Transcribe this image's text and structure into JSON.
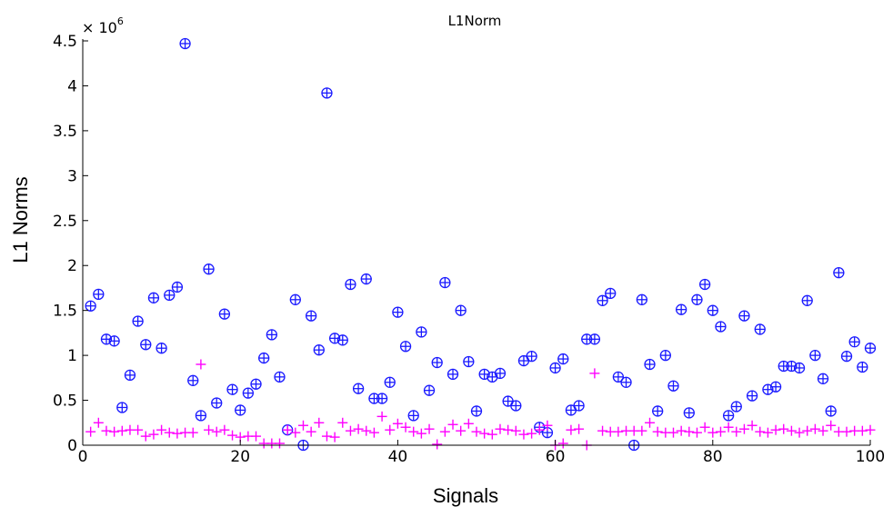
{
  "chart_data": {
    "type": "scatter",
    "title": "L1Norm",
    "xlabel": "Signals",
    "ylabel": "L1 Norms",
    "y_multiplier_label": "× 10",
    "y_multiplier_exponent": "6",
    "xlim": [
      0,
      100
    ],
    "ylim": [
      0,
      4.5
    ],
    "x_ticks": [
      0,
      20,
      40,
      60,
      80,
      100
    ],
    "x_tick_labels": [
      "0",
      "20",
      "40",
      "60",
      "80",
      "100"
    ],
    "y_ticks": [
      0,
      0.5,
      1,
      1.5,
      2,
      2.5,
      3,
      3.5,
      4,
      4.5
    ],
    "y_tick_labels": [
      "0",
      "0.5",
      "1",
      "1.5",
      "2",
      "2.5",
      "3",
      "3.5",
      "4",
      "4.5"
    ],
    "grid": false,
    "series": [
      {
        "marker": "circle-plus",
        "color": "#1a1aff",
        "x": [
          1,
          2,
          3,
          4,
          5,
          6,
          7,
          8,
          9,
          10,
          11,
          12,
          13,
          14,
          15,
          16,
          17,
          18,
          19,
          20,
          21,
          22,
          23,
          24,
          25,
          26,
          27,
          28,
          29,
          30,
          31,
          32,
          33,
          34,
          35,
          36,
          37,
          38,
          39,
          40,
          41,
          42,
          43,
          44,
          45,
          46,
          47,
          48,
          49,
          50,
          51,
          52,
          53,
          54,
          55,
          56,
          57,
          58,
          59,
          60,
          61,
          62,
          63,
          64,
          65,
          66,
          67,
          68,
          69,
          70,
          71,
          72,
          73,
          74,
          75,
          76,
          77,
          78,
          79,
          80,
          81,
          82,
          83,
          84,
          85,
          86,
          87,
          88,
          89,
          90,
          91,
          92,
          93,
          94,
          95,
          96,
          97,
          98,
          99,
          100
        ],
        "y": [
          1.55,
          1.68,
          1.18,
          1.16,
          0.42,
          0.78,
          1.38,
          1.12,
          1.64,
          1.08,
          1.67,
          1.76,
          4.47,
          0.72,
          0.33,
          1.96,
          0.47,
          1.46,
          0.62,
          0.39,
          0.58,
          0.68,
          0.97,
          1.23,
          0.76,
          0.17,
          1.62,
          0.0,
          1.44,
          1.06,
          3.92,
          1.19,
          1.17,
          1.79,
          0.63,
          1.85,
          0.52,
          0.52,
          0.7,
          1.48,
          1.1,
          0.33,
          1.26,
          0.61,
          0.92,
          1.81,
          0.79,
          1.5,
          0.93,
          0.38,
          0.79,
          0.76,
          0.8,
          0.49,
          0.44,
          0.94,
          0.99,
          0.2,
          0.14,
          0.86,
          0.96,
          0.39,
          0.44,
          1.18,
          1.18,
          1.61,
          1.69,
          0.76,
          0.7,
          0.0,
          1.62,
          0.9,
          0.38,
          1.0,
          0.66,
          1.51,
          0.36,
          1.62,
          1.79,
          1.5,
          1.32,
          0.33,
          0.43,
          1.44,
          0.55,
          1.29,
          0.62,
          0.65,
          0.88,
          0.88,
          0.86,
          1.61,
          1.0,
          0.74,
          0.38,
          1.92,
          0.99,
          1.15,
          0.87,
          1.08
        ]
      },
      {
        "marker": "plus",
        "color": "#ff00ff",
        "x": [
          1,
          2,
          3,
          4,
          5,
          6,
          7,
          8,
          9,
          10,
          11,
          12,
          13,
          14,
          15,
          16,
          17,
          18,
          19,
          20,
          21,
          22,
          23,
          24,
          25,
          26,
          27,
          28,
          29,
          30,
          31,
          32,
          33,
          34,
          35,
          36,
          37,
          38,
          39,
          40,
          41,
          42,
          43,
          44,
          45,
          46,
          47,
          48,
          49,
          50,
          51,
          52,
          53,
          54,
          55,
          56,
          57,
          58,
          59,
          60,
          61,
          62,
          63,
          64,
          65,
          66,
          67,
          68,
          69,
          70,
          71,
          72,
          73,
          74,
          75,
          76,
          77,
          78,
          79,
          80,
          81,
          82,
          83,
          84,
          85,
          86,
          87,
          88,
          89,
          90,
          91,
          92,
          93,
          94,
          95,
          96,
          97,
          98,
          99,
          100
        ],
        "y": [
          0.15,
          0.25,
          0.16,
          0.15,
          0.16,
          0.17,
          0.17,
          0.1,
          0.12,
          0.17,
          0.14,
          0.13,
          0.14,
          0.14,
          0.9,
          0.17,
          0.15,
          0.17,
          0.11,
          0.09,
          0.1,
          0.1,
          0.02,
          0.02,
          0.02,
          0.17,
          0.14,
          0.22,
          0.15,
          0.25,
          0.1,
          0.09,
          0.25,
          0.16,
          0.18,
          0.16,
          0.14,
          0.32,
          0.17,
          0.24,
          0.2,
          0.15,
          0.13,
          0.18,
          0.01,
          0.15,
          0.23,
          0.16,
          0.24,
          0.15,
          0.13,
          0.12,
          0.18,
          0.17,
          0.16,
          0.12,
          0.13,
          0.17,
          0.22,
          0.0,
          0.02,
          0.17,
          0.18,
          0.0,
          0.8,
          0.16,
          0.15,
          0.15,
          0.16,
          0.16,
          0.16,
          0.25,
          0.15,
          0.14,
          0.14,
          0.16,
          0.15,
          0.14,
          0.2,
          0.14,
          0.15,
          0.2,
          0.15,
          0.18,
          0.22,
          0.15,
          0.14,
          0.17,
          0.18,
          0.16,
          0.14,
          0.16,
          0.18,
          0.16,
          0.22,
          0.15,
          0.15,
          0.16,
          0.16,
          0.17
        ]
      }
    ]
  }
}
